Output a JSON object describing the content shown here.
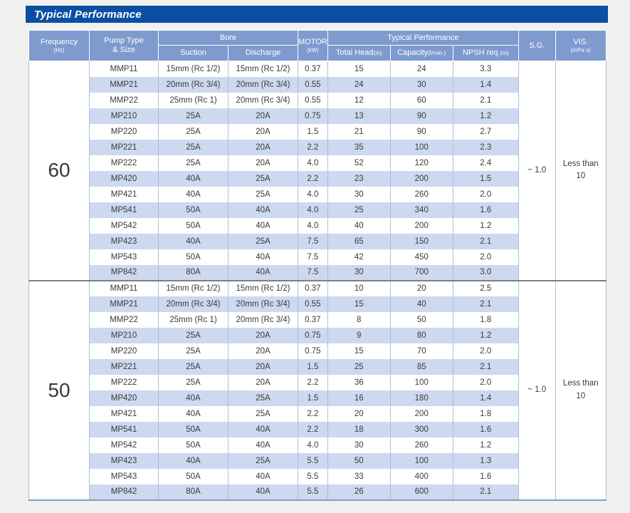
{
  "title": "Typical Performance",
  "table": {
    "headers": {
      "frequency": "Frequency",
      "frequency_unit": "(Hz)",
      "pump_type_line1": "Pump Type",
      "pump_type_line2": "& Size",
      "bore": "Bore",
      "suction": "Suction",
      "discharge": "Discharge",
      "motor": "MOTOR",
      "motor_unit": "(kW)",
      "typical_performance": "Typical Performance",
      "total_head": "Total Head",
      "total_head_unit": "(m)",
      "capacity": "Capacity",
      "capacity_unit": "(ℓ/min.)",
      "npsh": "NPSH req.",
      "npsh_unit": "(m)",
      "sg": "S.G.",
      "vis": "VIS.",
      "vis_unit": "(mPa·s)"
    },
    "column_order": [
      "pump_type",
      "suction",
      "discharge",
      "motor_kw",
      "total_head",
      "capacity",
      "npsh"
    ],
    "sections": [
      {
        "frequency": "60",
        "sg": "~ 1.0",
        "vis_line1": "Less than",
        "vis_line2": "10",
        "rows": [
          [
            "MMP11",
            "15mm (Rc 1/2)",
            "15mm (Rc 1/2)",
            "0.37",
            "15",
            "24",
            "3.3"
          ],
          [
            "MMP21",
            "20mm (Rc 3/4)",
            "20mm (Rc 3/4)",
            "0.55",
            "24",
            "30",
            "1.4"
          ],
          [
            "MMP22",
            "25mm (Rc 1)",
            "20mm (Rc 3/4)",
            "0.55",
            "12",
            "60",
            "2.1"
          ],
          [
            "MP210",
            "25A",
            "20A",
            "0.75",
            "13",
            "90",
            "1.2"
          ],
          [
            "MP220",
            "25A",
            "20A",
            "1.5",
            "21",
            "90",
            "2.7"
          ],
          [
            "MP221",
            "25A",
            "20A",
            "2.2",
            "35",
            "100",
            "2.3"
          ],
          [
            "MP222",
            "25A",
            "20A",
            "4.0",
            "52",
            "120",
            "2.4"
          ],
          [
            "MP420",
            "40A",
            "25A",
            "2.2",
            "23",
            "200",
            "1.5"
          ],
          [
            "MP421",
            "40A",
            "25A",
            "4.0",
            "30",
            "260",
            "2.0"
          ],
          [
            "MP541",
            "50A",
            "40A",
            "4.0",
            "25",
            "340",
            "1.6"
          ],
          [
            "MP542",
            "50A",
            "40A",
            "4.0",
            "40",
            "200",
            "1.2"
          ],
          [
            "MP423",
            "40A",
            "25A",
            "7.5",
            "65",
            "150",
            "2.1"
          ],
          [
            "MP543",
            "50A",
            "40A",
            "7.5",
            "42",
            "450",
            "2.0"
          ],
          [
            "MP842",
            "80A",
            "40A",
            "7.5",
            "30",
            "700",
            "3.0"
          ]
        ]
      },
      {
        "frequency": "50",
        "sg": "~ 1.0",
        "vis_line1": "Less than",
        "vis_line2": "10",
        "rows": [
          [
            "MMP11",
            "15mm (Rc 1/2)",
            "15mm (Rc 1/2)",
            "0.37",
            "10",
            "20",
            "2.5"
          ],
          [
            "MMP21",
            "20mm (Rc 3/4)",
            "20mm (Rc 3/4)",
            "0.55",
            "15",
            "40",
            "2.1"
          ],
          [
            "MMP22",
            "25mm (Rc 1)",
            "20mm (Rc 3/4)",
            "0.37",
            "8",
            "50",
            "1.8"
          ],
          [
            "MP210",
            "25A",
            "20A",
            "0.75",
            "9",
            "80",
            "1.2"
          ],
          [
            "MP220",
            "25A",
            "20A",
            "0.75",
            "15",
            "70",
            "2.0"
          ],
          [
            "MP221",
            "25A",
            "20A",
            "1.5",
            "25",
            "85",
            "2.1"
          ],
          [
            "MP222",
            "25A",
            "20A",
            "2.2",
            "36",
            "100",
            "2.0"
          ],
          [
            "MP420",
            "40A",
            "25A",
            "1.5",
            "16",
            "180",
            "1.4"
          ],
          [
            "MP421",
            "40A",
            "25A",
            "2.2",
            "20",
            "200",
            "1.8"
          ],
          [
            "MP541",
            "50A",
            "40A",
            "2.2",
            "18",
            "300",
            "1.6"
          ],
          [
            "MP542",
            "50A",
            "40A",
            "4.0",
            "30",
            "260",
            "1.2"
          ],
          [
            "MP423",
            "40A",
            "25A",
            "5.5",
            "50",
            "100",
            "1.3"
          ],
          [
            "MP543",
            "50A",
            "40A",
            "5.5",
            "33",
            "400",
            "1.6"
          ],
          [
            "MP842",
            "80A",
            "40A",
            "5.5",
            "26",
            "600",
            "2.1"
          ]
        ]
      }
    ]
  }
}
